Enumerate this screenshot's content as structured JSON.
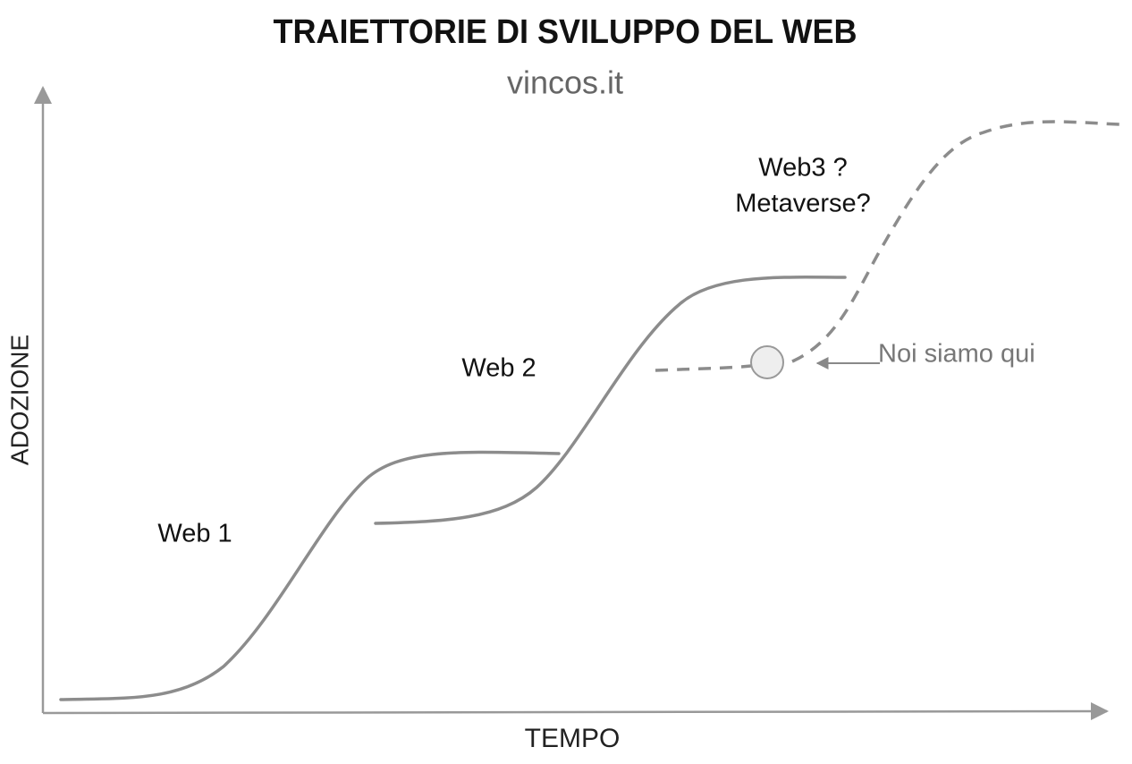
{
  "header": {
    "title": "TRAIETTORIE DI SVILUPPO DEL WEB",
    "subtitle": "vincos.it"
  },
  "axes": {
    "x_label": "TEMPO",
    "y_label": "ADOZIONE"
  },
  "curves": [
    {
      "label": "Web 1"
    },
    {
      "label": "Web 2"
    },
    {
      "label_lines": [
        "Web3 ?",
        "Metaverse?"
      ]
    }
  ],
  "marker": {
    "label": "Noi siamo qui"
  }
}
